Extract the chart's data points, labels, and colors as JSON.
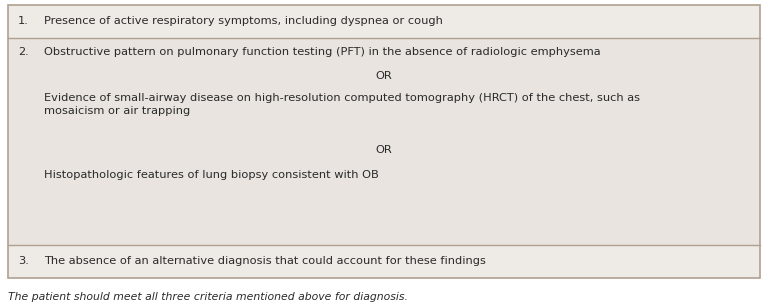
{
  "bg_color": "#ede8e3",
  "row1_bg": "#edeae6",
  "row3_bg": "#edeae6",
  "row2_bg": "#e8e3de",
  "border_color": "#b0a090",
  "text_color": "#2a2a2a",
  "row1_num": "1.",
  "row1_text": "Presence of active respiratory symptoms, including dyspnea or cough",
  "row2_num": "2.",
  "row2_text_a": "Obstructive pattern on pulmonary function testing (PFT) in the absence of radiologic emphysema",
  "row2_or1": "OR",
  "row2_text_b": "Evidence of small-airway disease on high-resolution computed tomography (HRCT) of the chest, such as\nmosaicism or air trapping",
  "row2_or2": "OR",
  "row2_text_c": "Histopathologic features of lung biopsy consistent with OB",
  "row3_num": "3.",
  "row3_text": "The absence of an alternative diagnosis that could account for these findings",
  "footnote": "The patient should meet all three criteria mentioned above for diagnosis.",
  "font_size": 8.2,
  "footnote_font_size": 7.8
}
